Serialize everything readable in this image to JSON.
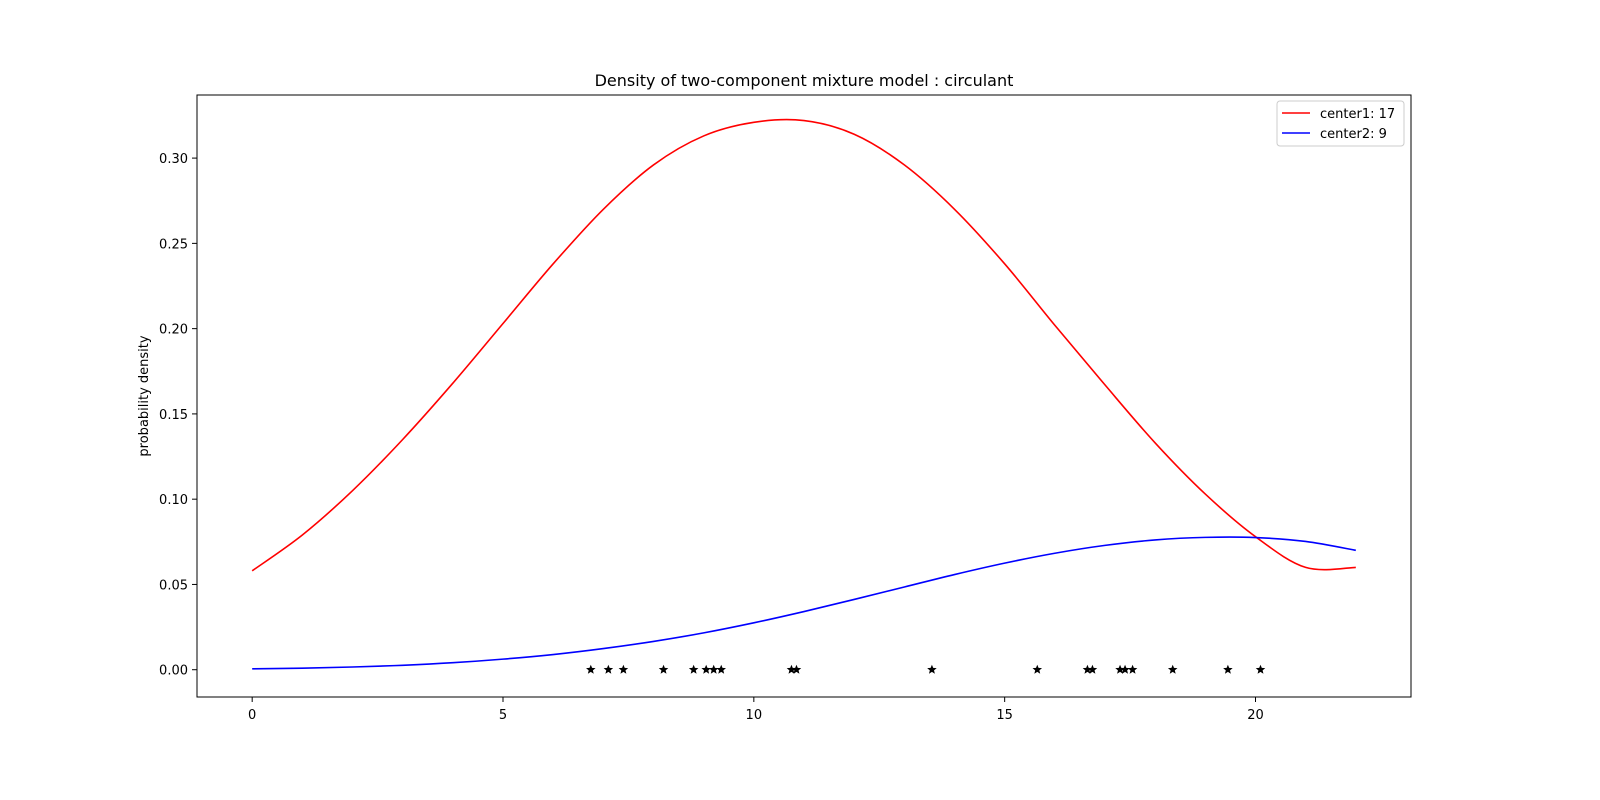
{
  "chart_data": {
    "type": "line",
    "title": "Density of two-component mixture model : circulant",
    "xlabel": "",
    "ylabel": "probability density",
    "xlim": [
      -1.1,
      23.1
    ],
    "ylim": [
      -0.016,
      0.337
    ],
    "xticks": [
      0,
      5,
      10,
      15,
      20
    ],
    "xtick_labels": [
      "0",
      "5",
      "10",
      "15",
      "20"
    ],
    "yticks": [
      0.0,
      0.05,
      0.1,
      0.15,
      0.2,
      0.25,
      0.3
    ],
    "ytick_labels": [
      "0.00",
      "0.05",
      "0.10",
      "0.15",
      "0.20",
      "0.25",
      "0.30"
    ],
    "grid": false,
    "legend_position": "top-right",
    "series": [
      {
        "name": "center1: 17",
        "color": "#ff0000",
        "x": [
          0,
          1,
          2,
          3,
          4,
          5,
          6,
          7,
          8,
          9,
          10,
          11,
          12,
          13,
          14,
          15,
          16,
          17,
          18,
          19,
          20,
          21,
          22
        ],
        "values": [
          0.058,
          0.079,
          0.105,
          0.135,
          0.168,
          0.203,
          0.238,
          0.27,
          0.296,
          0.313,
          0.321,
          0.322,
          0.314,
          0.296,
          0.27,
          0.238,
          0.202,
          0.167,
          0.133,
          0.103,
          0.078,
          0.06,
          0.06
        ]
      },
      {
        "name": "center2: 9",
        "color": "#0000ff",
        "x": [
          0,
          1,
          2,
          3,
          4,
          5,
          6,
          7,
          8,
          9,
          10,
          11,
          12,
          13,
          14,
          15,
          16,
          17,
          18,
          19,
          20,
          21,
          22
        ],
        "values": [
          0.0005,
          0.0009,
          0.0016,
          0.0026,
          0.0041,
          0.0062,
          0.0089,
          0.0124,
          0.0166,
          0.0216,
          0.0275,
          0.0341,
          0.0412,
          0.0485,
          0.0558,
          0.0625,
          0.0683,
          0.0729,
          0.0761,
          0.0776,
          0.0775,
          0.0752,
          0.07
        ]
      }
    ],
    "observations": {
      "marker": "star",
      "color": "#000000",
      "x": [
        6.75,
        7.1,
        7.4,
        8.2,
        8.8,
        9.05,
        9.2,
        9.35,
        10.75,
        10.85,
        13.55,
        15.65,
        16.65,
        16.75,
        17.3,
        17.4,
        17.55,
        18.35,
        19.45,
        20.1
      ],
      "y": [
        0,
        0,
        0,
        0,
        0,
        0,
        0,
        0,
        0,
        0,
        0,
        0,
        0,
        0,
        0,
        0,
        0,
        0,
        0,
        0
      ]
    }
  }
}
